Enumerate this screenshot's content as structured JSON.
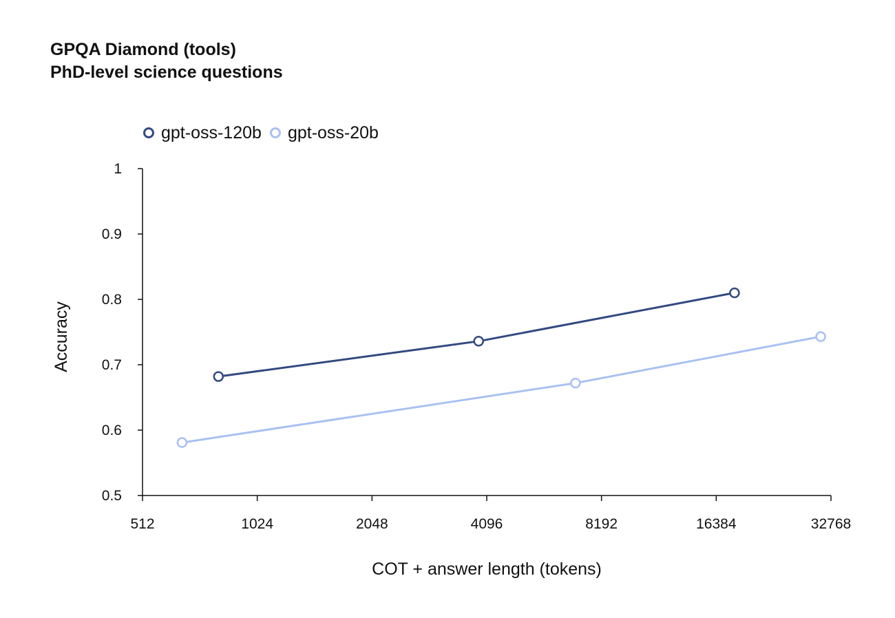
{
  "chart_data": {
    "type": "line",
    "title": "GPQA Diamond (tools)",
    "subtitle": "PhD-level science questions",
    "xlabel": "COT + answer length (tokens)",
    "ylabel": "Accuracy",
    "x_scale": "log2",
    "xlim": [
      512,
      32768
    ],
    "ylim": [
      0.5,
      1
    ],
    "x_ticks": [
      512,
      1024,
      2048,
      4096,
      8192,
      16384,
      32768
    ],
    "x_tick_labels": [
      "512",
      "1024",
      "2048",
      "4096",
      "8192",
      "16384",
      "32768"
    ],
    "y_ticks": [
      0.5,
      0.6,
      0.7,
      0.8,
      0.9,
      1
    ],
    "y_tick_labels": [
      "0.5",
      "0.6",
      "0.7",
      "0.8",
      "0.9",
      "1"
    ],
    "grid": false,
    "legend_position": "top-left",
    "series": [
      {
        "name": "gpt-oss-120b",
        "color": "#334a80",
        "points": [
          {
            "x": 810,
            "y": 0.682
          },
          {
            "x": 3900,
            "y": 0.736
          },
          {
            "x": 18300,
            "y": 0.81
          }
        ]
      },
      {
        "name": "gpt-oss-20b",
        "color": "#a9c1f2",
        "points": [
          {
            "x": 650,
            "y": 0.581
          },
          {
            "x": 7000,
            "y": 0.672
          },
          {
            "x": 30800,
            "y": 0.743
          }
        ]
      }
    ]
  }
}
